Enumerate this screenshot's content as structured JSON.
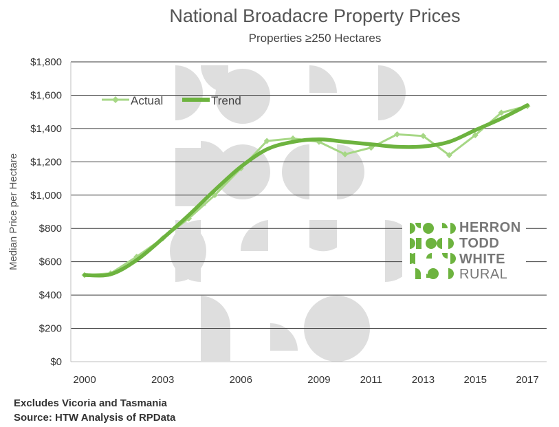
{
  "chart_data": {
    "type": "line",
    "title": "National Broadacre Property Prices",
    "subtitle": "Properties ≥250 Hectares",
    "ylabel": "Median Price per Hectare",
    "ylim": [
      0,
      1800
    ],
    "xlim": [
      2000,
      2017
    ],
    "y_ticks": [
      "$0",
      "$200",
      "$400",
      "$600",
      "$800",
      "$1,000",
      "$1,200",
      "$1,400",
      "$1,600",
      "$1,800"
    ],
    "y_tick_values": [
      0,
      200,
      400,
      600,
      800,
      1000,
      1200,
      1400,
      1600,
      1800
    ],
    "x_ticks": [
      "2000",
      "2003",
      "2006",
      "2009",
      "2011",
      "2013",
      "2015",
      "2017"
    ],
    "x_tick_values": [
      2000,
      2003,
      2006,
      2009,
      2011,
      2013,
      2015,
      2017
    ],
    "grid": "horizontal",
    "legend_position": "top-left",
    "series": [
      {
        "name": "Actual",
        "color": "#a6d785",
        "x": [
          2000,
          2001,
          2002,
          2003,
          2004,
          2005,
          2006,
          2007,
          2008,
          2009,
          2010,
          2011,
          2012,
          2013,
          2014,
          2015,
          2016,
          2017
        ],
        "values": [
          520,
          530,
          630,
          740,
          860,
          1000,
          1160,
          1325,
          1340,
          1320,
          1245,
          1285,
          1365,
          1355,
          1240,
          1360,
          1495,
          1535
        ]
      },
      {
        "name": "Trend",
        "color": "#6db33f",
        "x": [
          2000,
          2001,
          2002,
          2003,
          2004,
          2005,
          2006,
          2007,
          2008,
          2009,
          2010,
          2011,
          2012,
          2013,
          2014,
          2015,
          2016,
          2017
        ],
        "values": [
          520,
          525,
          610,
          740,
          880,
          1030,
          1170,
          1275,
          1320,
          1335,
          1320,
          1305,
          1290,
          1292,
          1320,
          1390,
          1460,
          1540
        ]
      }
    ]
  },
  "logo": {
    "line1": "HERRON",
    "line2": "TODD",
    "line3": "WHITE",
    "line4": "RURAL",
    "brand_green": "#6db33f"
  },
  "footnotes": {
    "line1": "Excludes Vicoria and Tasmania",
    "line2": "Source: HTW Analysis of RPData"
  }
}
